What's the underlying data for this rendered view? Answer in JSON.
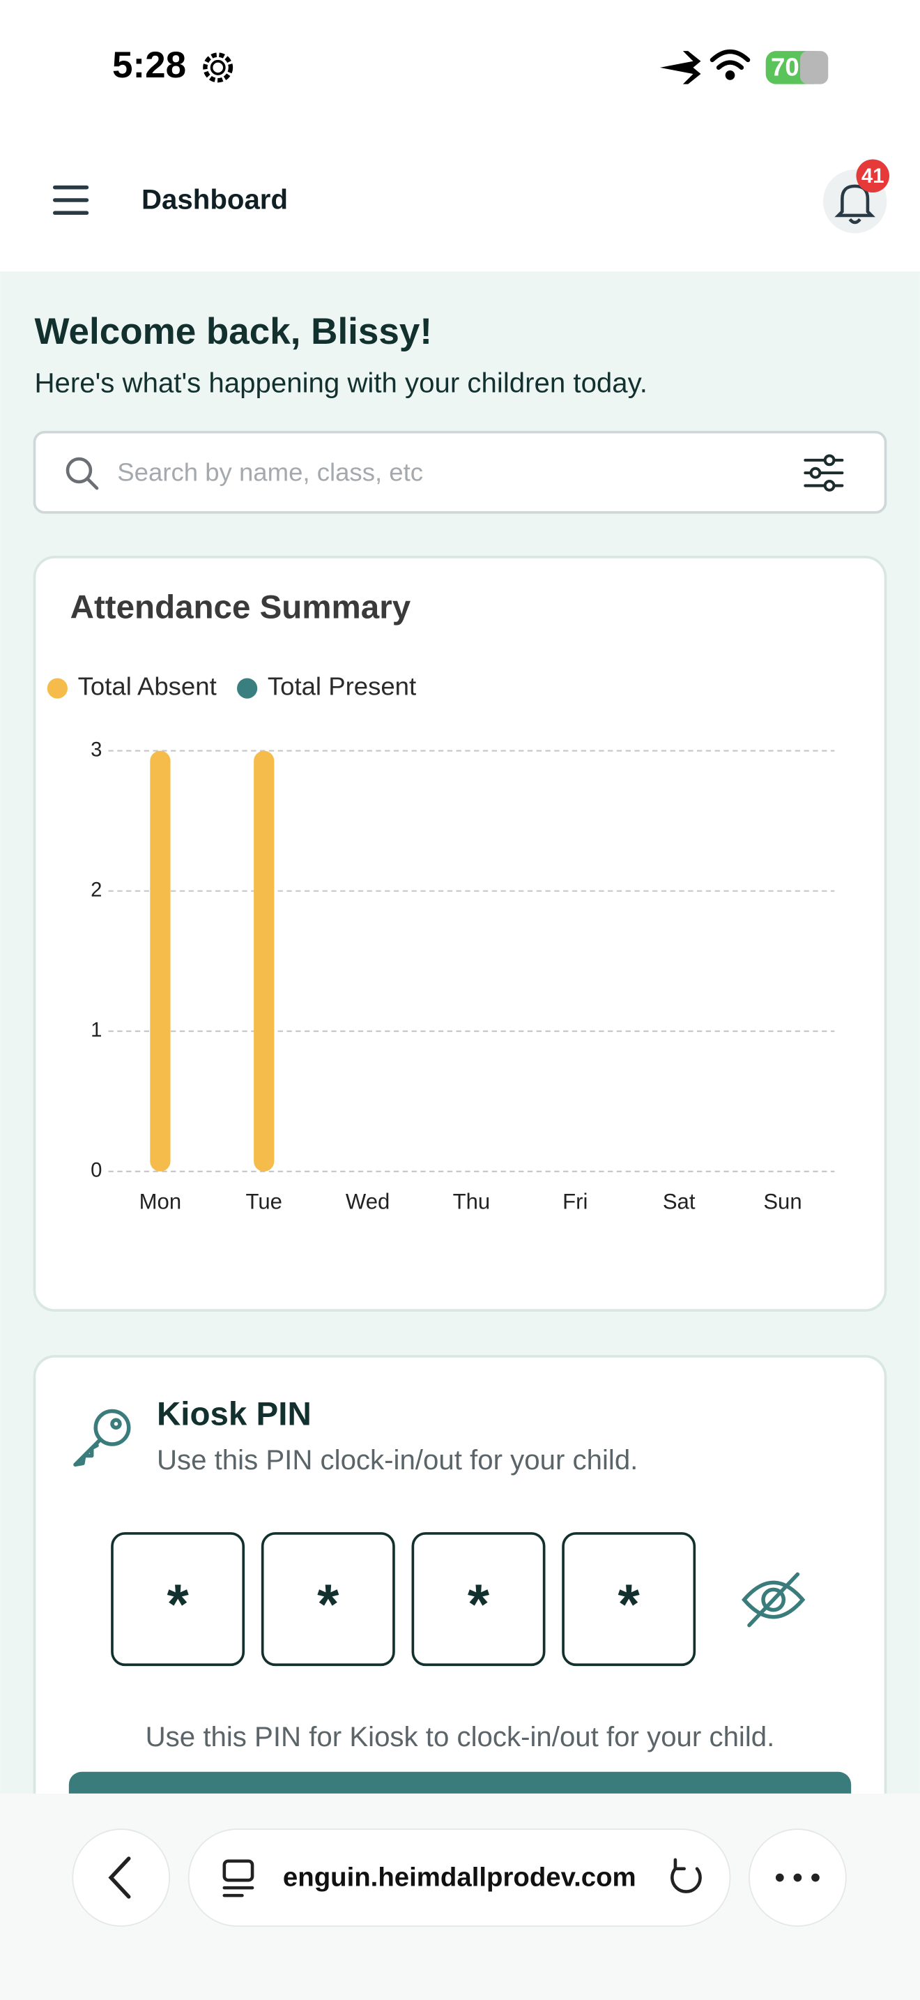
{
  "status_bar": {
    "time": "5:28",
    "battery": "70"
  },
  "header": {
    "title": "Dashboard",
    "notification_count": "41"
  },
  "welcome": {
    "title": "Welcome back, Blissy!",
    "subtitle": "Here's what's happening with your children today."
  },
  "search": {
    "placeholder": "Search by name, class, etc"
  },
  "chart_data": {
    "type": "bar",
    "title": "Attendance Summary",
    "categories": [
      "Mon",
      "Tue",
      "Wed",
      "Thu",
      "Fri",
      "Sat",
      "Sun"
    ],
    "series": [
      {
        "name": "Total Absent",
        "color": "#f5bc4c",
        "values": [
          3,
          3,
          0,
          0,
          0,
          0,
          0
        ]
      },
      {
        "name": "Total Present",
        "color": "#3a7f7f",
        "values": [
          0,
          0,
          0,
          0,
          0,
          0,
          0
        ]
      }
    ],
    "ylim": [
      0,
      3
    ],
    "yticks": [
      0,
      1,
      2,
      3
    ],
    "grid": true,
    "stacked": true
  },
  "kiosk": {
    "title": "Kiosk PIN",
    "subtitle": "Use this PIN clock-in/out for your child.",
    "pin": [
      "*",
      "*",
      "*",
      "*"
    ],
    "note": "Use this PIN for Kiosk to clock-in/out for your child."
  },
  "browser": {
    "url": "enguin.heimdallprodev.com"
  }
}
